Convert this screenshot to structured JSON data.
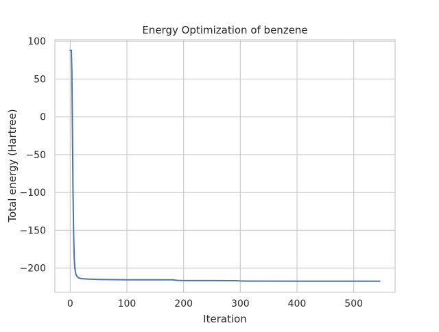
{
  "chart_data": {
    "type": "line",
    "title": "Energy Optimization of benzene",
    "xlabel": "Iteration",
    "ylabel": "Total energy (Hartree)",
    "xlim": [
      -27,
      573
    ],
    "ylim": [
      -232,
      102
    ],
    "x_ticks": [
      0,
      100,
      200,
      300,
      400,
      500
    ],
    "y_ticks": [
      100,
      50,
      0,
      -50,
      -100,
      -150,
      -200
    ],
    "x_tick_labels": [
      "0",
      "100",
      "200",
      "300",
      "400",
      "500"
    ],
    "y_tick_labels": [
      "100",
      "50",
      "0",
      "−50",
      "−100",
      "−150",
      "−200"
    ],
    "grid": true,
    "series": [
      {
        "color": "#4c72b0",
        "points": [
          [
            0,
            88
          ],
          [
            1,
            88
          ],
          [
            2,
            88
          ],
          [
            3,
            60
          ],
          [
            4,
            -20
          ],
          [
            5,
            -100
          ],
          [
            6,
            -150
          ],
          [
            7,
            -185
          ],
          [
            8,
            -198
          ],
          [
            9,
            -204
          ],
          [
            10,
            -208
          ],
          [
            12,
            -211
          ],
          [
            15,
            -213
          ],
          [
            20,
            -214
          ],
          [
            30,
            -214.5
          ],
          [
            50,
            -215
          ],
          [
            100,
            -215.5
          ],
          [
            150,
            -215.5
          ],
          [
            180,
            -215.5
          ],
          [
            190,
            -216.3
          ],
          [
            200,
            -216.5
          ],
          [
            250,
            -216.5
          ],
          [
            290,
            -216.6
          ],
          [
            300,
            -217
          ],
          [
            310,
            -217.2
          ],
          [
            400,
            -217.3
          ],
          [
            500,
            -217.3
          ],
          [
            546,
            -217.3
          ]
        ]
      }
    ]
  }
}
